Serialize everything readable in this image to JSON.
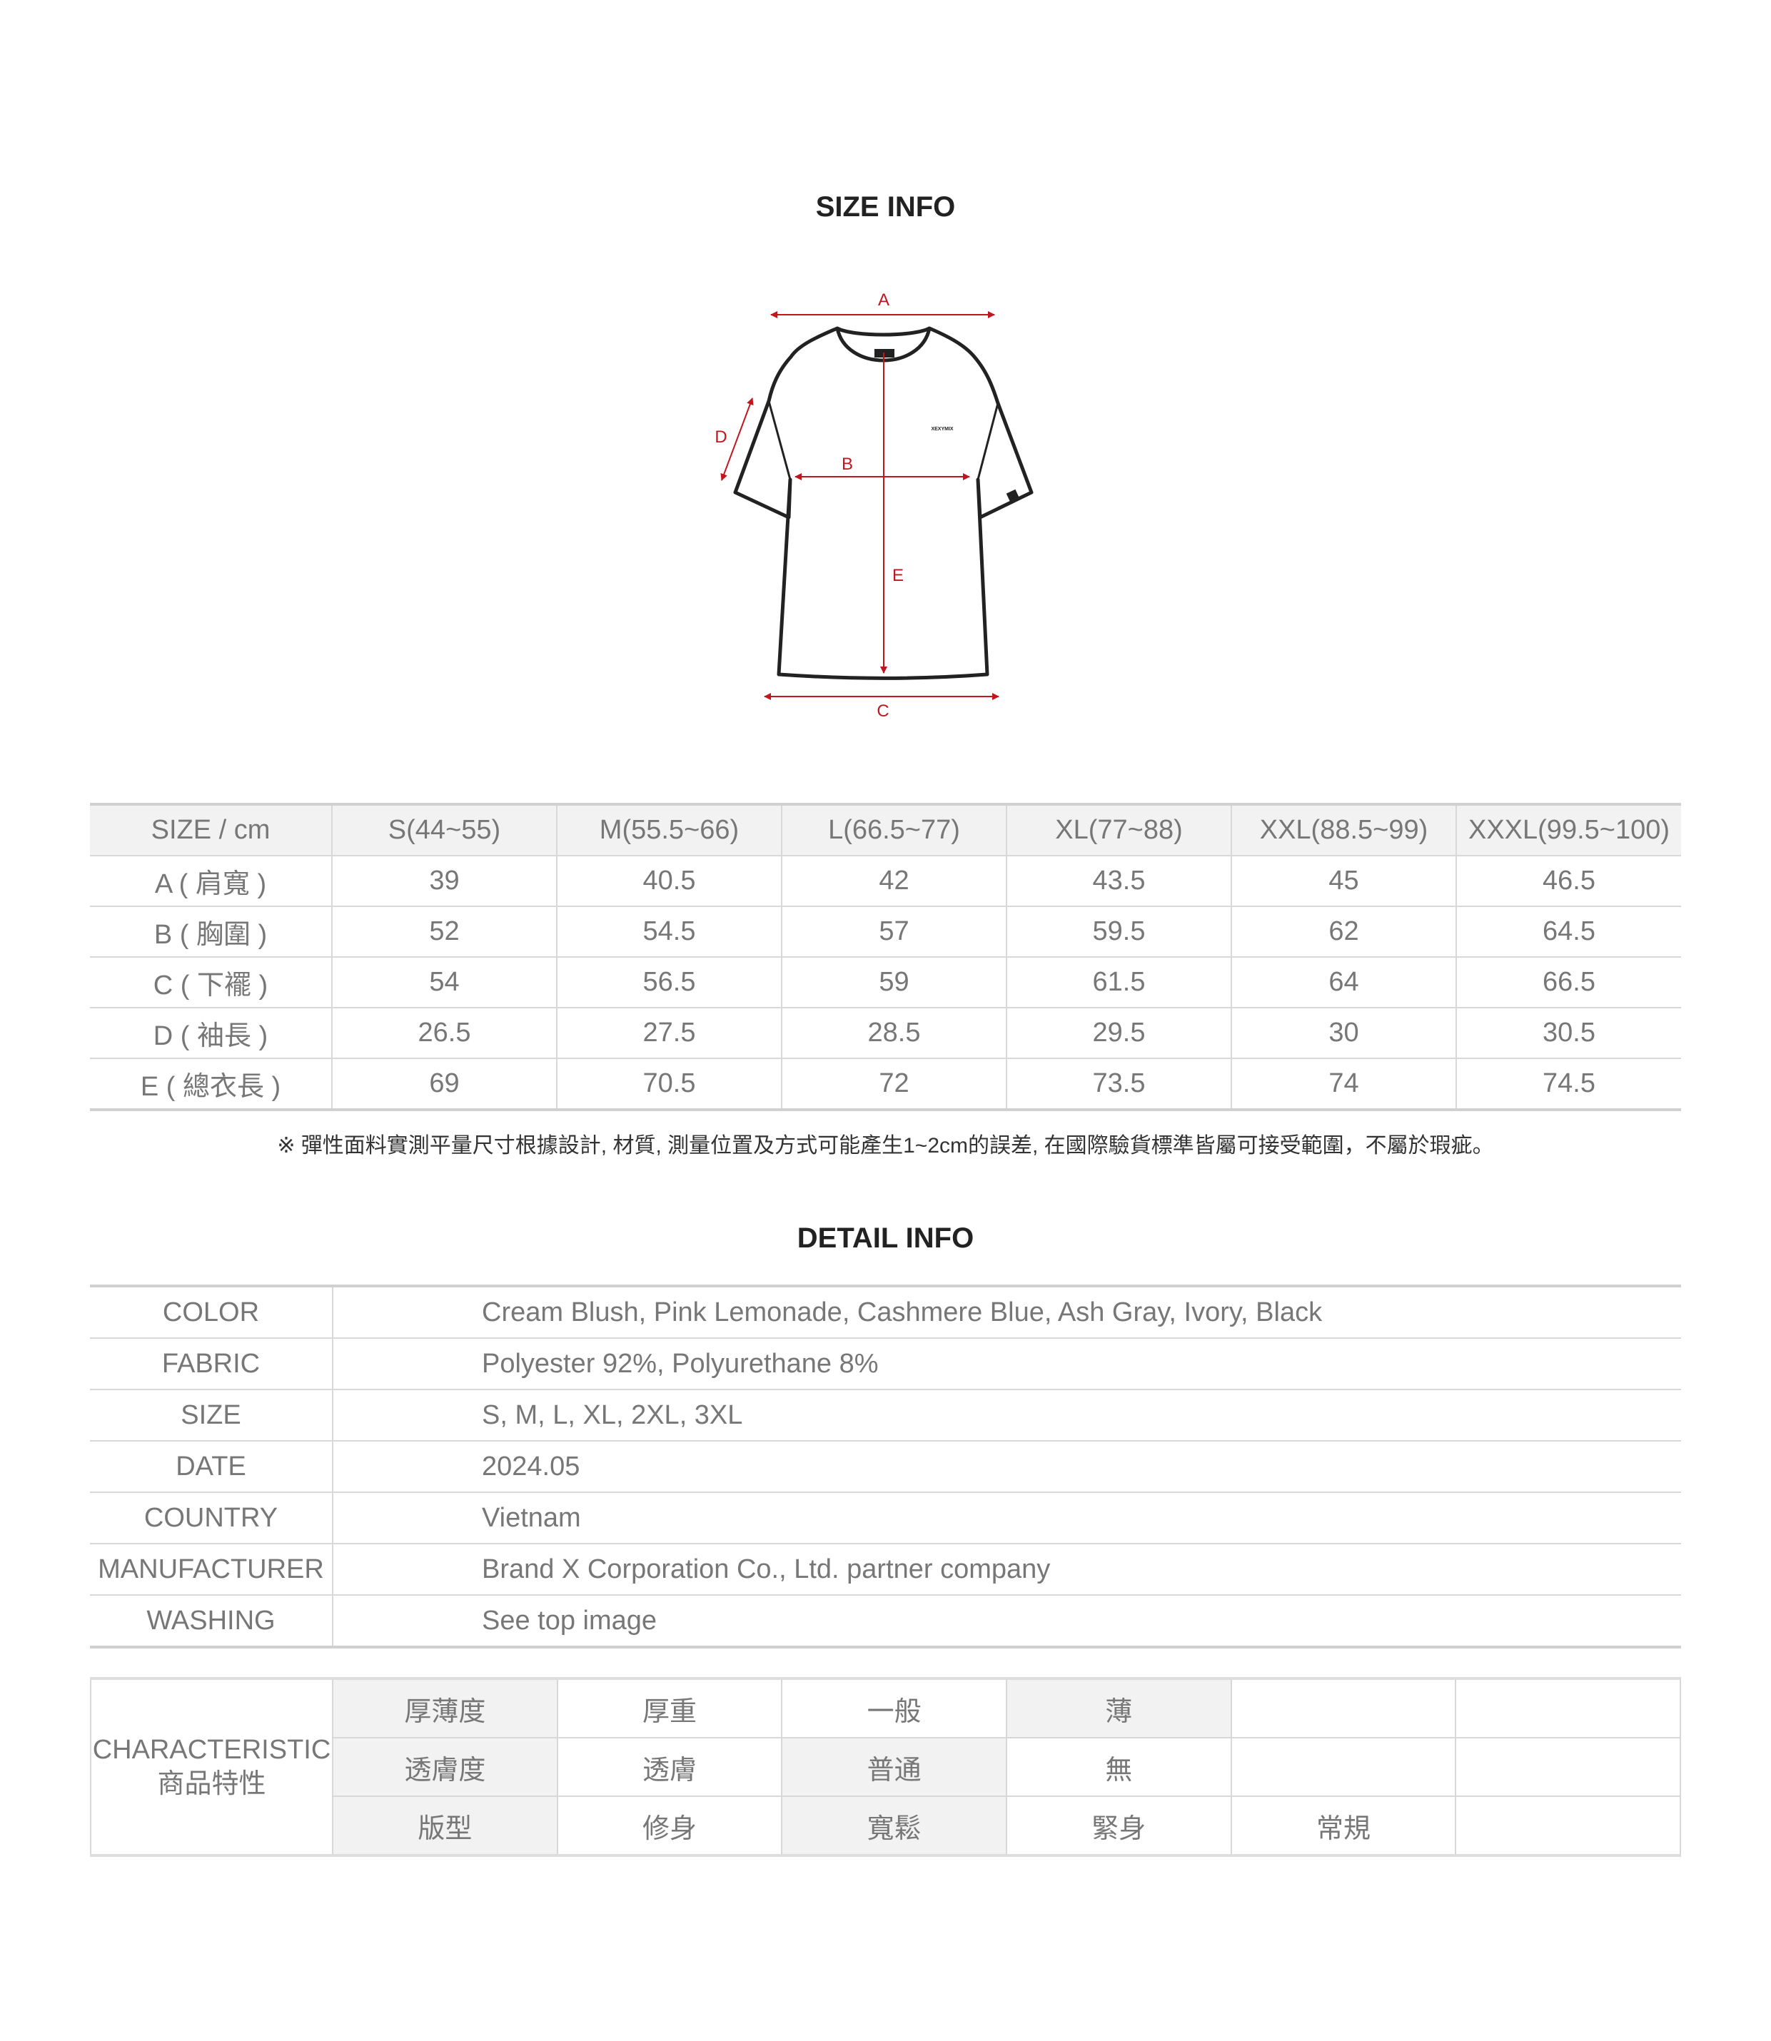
{
  "size_info": {
    "title": "SIZE INFO",
    "diagram": {
      "labels": {
        "a": "A",
        "b": "B",
        "c": "C",
        "d": "D",
        "e": "E"
      },
      "logo_text": "XEXYMIX",
      "arrow_color": "#c0161e"
    },
    "table": {
      "headers": [
        "SIZE / cm",
        "S(44~55)",
        "M(55.5~66)",
        "L(66.5~77)",
        "XL(77~88)",
        "XXL(88.5~99)",
        "XXXL(99.5~100)"
      ],
      "rows": [
        [
          "A ( 肩寬 )",
          "39",
          "40.5",
          "42",
          "43.5",
          "45",
          "46.5"
        ],
        [
          "B ( 胸圍 )",
          "52",
          "54.5",
          "57",
          "59.5",
          "62",
          "64.5"
        ],
        [
          "C ( 下襬 )",
          "54",
          "56.5",
          "59",
          "61.5",
          "64",
          "66.5"
        ],
        [
          "D ( 袖長 )",
          "26.5",
          "27.5",
          "28.5",
          "29.5",
          "30",
          "30.5"
        ],
        [
          "E ( 總衣長 )",
          "69",
          "70.5",
          "72",
          "73.5",
          "74",
          "74.5"
        ]
      ]
    },
    "note": "※ 彈性面料實測平量尺寸根據設計, 材質, 測量位置及方式可能產生1~2cm的誤差, 在國際驗貨標準皆屬可接受範圍，不屬於瑕疵。"
  },
  "detail_info": {
    "title": "DETAIL INFO",
    "rows": [
      {
        "key": "COLOR",
        "value": "Cream Blush, Pink Lemonade, Cashmere Blue, Ash Gray, Ivory, Black"
      },
      {
        "key": "FABRIC",
        "value": "Polyester 92%, Polyurethane 8%"
      },
      {
        "key": "SIZE",
        "value": "S, M, L, XL, 2XL, 3XL"
      },
      {
        "key": "DATE",
        "value": "2024.05"
      },
      {
        "key": "COUNTRY",
        "value": "Vietnam"
      },
      {
        "key": "MANUFACTURER",
        "value": "Brand X Corporation Co., Ltd. partner company"
      },
      {
        "key": "WASHING",
        "value": "See top image"
      }
    ]
  },
  "characteristic": {
    "label_en": "CHARACTERISTIC",
    "label_zh": "商品特性",
    "rows": [
      {
        "name": "厚薄度",
        "options": [
          "厚重",
          "一般",
          "薄",
          "",
          ""
        ],
        "selected": "薄"
      },
      {
        "name": "透膚度",
        "options": [
          "透膚",
          "普通",
          "無",
          "",
          ""
        ],
        "selected": "普通"
      },
      {
        "name": "版型",
        "options": [
          "修身",
          "寬鬆",
          "緊身",
          "常規",
          ""
        ],
        "selected": "寬鬆"
      }
    ]
  }
}
